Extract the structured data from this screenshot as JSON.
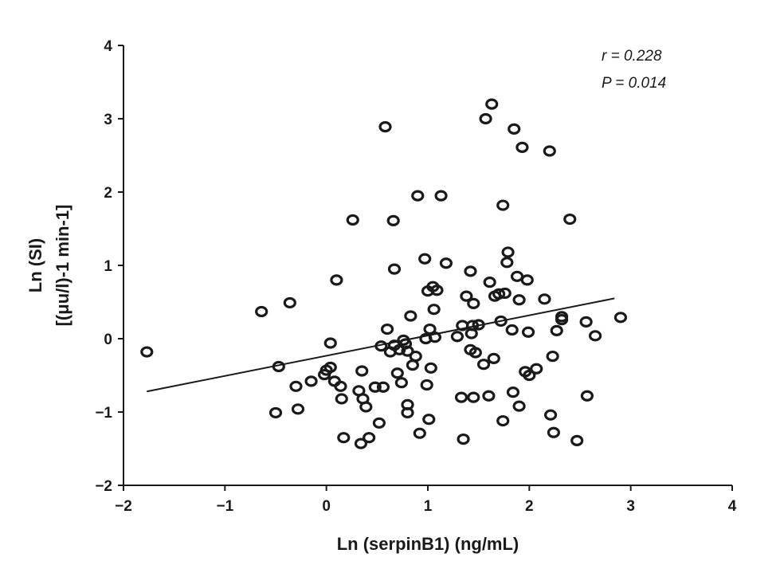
{
  "chart_data": {
    "type": "scatter",
    "xlabel": "Ln (serpinB1) (ng/mL)",
    "ylabel_line1": "Ln (SI)",
    "ylabel_line2": "[(μu/l)-1 min-1]",
    "xlim": [
      -2,
      4
    ],
    "ylim": [
      -2,
      4
    ],
    "x_ticks": [
      -2,
      -1,
      0,
      1,
      2,
      3,
      4
    ],
    "x_tick_labels": [
      "−2",
      "−1",
      "0",
      "1",
      "2",
      "3",
      "4"
    ],
    "y_ticks": [
      -2,
      -1,
      0,
      1,
      2,
      3,
      4
    ],
    "y_tick_labels": [
      "−2",
      "−1",
      "0",
      "1",
      "2",
      "3",
      "4"
    ],
    "grid": false,
    "annotations": {
      "r": "r = 0.228",
      "p": "P = 0.014"
    },
    "trendline": {
      "x": [
        -1.77,
        2.84
      ],
      "y": [
        -0.72,
        0.55
      ]
    },
    "points": [
      [
        -1.77,
        -0.18
      ],
      [
        -0.64,
        0.37
      ],
      [
        -0.36,
        0.49
      ],
      [
        -0.47,
        -0.38
      ],
      [
        -0.3,
        -0.65
      ],
      [
        -0.28,
        -0.96
      ],
      [
        -0.5,
        -1.01
      ],
      [
        -0.15,
        -0.58
      ],
      [
        0.1,
        0.8
      ],
      [
        0.04,
        -0.06
      ],
      [
        0.04,
        -0.39
      ],
      [
        0.0,
        -0.43
      ],
      [
        -0.02,
        -0.49
      ],
      [
        0.08,
        -0.58
      ],
      [
        0.14,
        -0.65
      ],
      [
        0.15,
        -0.82
      ],
      [
        0.17,
        -1.35
      ],
      [
        0.26,
        1.62
      ],
      [
        0.32,
        -0.71
      ],
      [
        0.34,
        -1.43
      ],
      [
        0.35,
        -0.44
      ],
      [
        0.36,
        -0.82
      ],
      [
        0.39,
        -0.93
      ],
      [
        0.42,
        -1.35
      ],
      [
        0.48,
        -0.66
      ],
      [
        0.52,
        -1.15
      ],
      [
        0.54,
        -0.1
      ],
      [
        0.56,
        -0.66
      ],
      [
        0.58,
        2.89
      ],
      [
        0.6,
        0.13
      ],
      [
        0.63,
        -0.18
      ],
      [
        0.66,
        1.61
      ],
      [
        0.67,
        0.95
      ],
      [
        0.67,
        -0.09
      ],
      [
        0.7,
        -0.47
      ],
      [
        0.72,
        -0.15
      ],
      [
        0.74,
        -0.6
      ],
      [
        0.76,
        -0.02
      ],
      [
        0.78,
        -0.07
      ],
      [
        0.8,
        -0.17
      ],
      [
        0.8,
        -1.01
      ],
      [
        0.8,
        -0.9
      ],
      [
        0.83,
        0.31
      ],
      [
        0.85,
        -0.36
      ],
      [
        0.88,
        -0.24
      ],
      [
        0.9,
        1.95
      ],
      [
        0.92,
        -1.29
      ],
      [
        0.97,
        1.09
      ],
      [
        0.98,
        0.0
      ],
      [
        0.99,
        -0.63
      ],
      [
        1.0,
        0.65
      ],
      [
        1.01,
        -1.1
      ],
      [
        1.02,
        0.13
      ],
      [
        1.03,
        -0.4
      ],
      [
        1.05,
        0.71
      ],
      [
        1.06,
        0.4
      ],
      [
        1.07,
        0.02
      ],
      [
        1.09,
        0.66
      ],
      [
        1.13,
        1.95
      ],
      [
        1.18,
        1.03
      ],
      [
        1.29,
        0.03
      ],
      [
        1.33,
        -0.8
      ],
      [
        1.34,
        0.18
      ],
      [
        1.35,
        -1.37
      ],
      [
        1.38,
        0.58
      ],
      [
        1.42,
        0.92
      ],
      [
        1.42,
        -0.15
      ],
      [
        1.43,
        0.07
      ],
      [
        1.44,
        0.18
      ],
      [
        1.45,
        0.48
      ],
      [
        1.45,
        -0.8
      ],
      [
        1.47,
        -0.19
      ],
      [
        1.5,
        0.19
      ],
      [
        1.55,
        -0.35
      ],
      [
        1.57,
        3.0
      ],
      [
        1.6,
        -0.78
      ],
      [
        1.61,
        0.77
      ],
      [
        1.63,
        3.2
      ],
      [
        1.65,
        -0.27
      ],
      [
        1.66,
        0.58
      ],
      [
        1.7,
        0.61
      ],
      [
        1.72,
        0.24
      ],
      [
        1.74,
        1.82
      ],
      [
        1.74,
        -1.12
      ],
      [
        1.76,
        0.62
      ],
      [
        1.78,
        1.04
      ],
      [
        1.79,
        1.18
      ],
      [
        1.83,
        0.12
      ],
      [
        1.84,
        -0.73
      ],
      [
        1.85,
        2.86
      ],
      [
        1.88,
        0.85
      ],
      [
        1.9,
        0.53
      ],
      [
        1.9,
        -0.92
      ],
      [
        1.93,
        2.61
      ],
      [
        1.96,
        -0.45
      ],
      [
        1.98,
        0.8
      ],
      [
        1.99,
        0.09
      ],
      [
        2.0,
        -0.5
      ],
      [
        2.07,
        -0.41
      ],
      [
        2.15,
        0.54
      ],
      [
        2.2,
        2.56
      ],
      [
        2.21,
        -1.04
      ],
      [
        2.23,
        -0.24
      ],
      [
        2.24,
        -1.28
      ],
      [
        2.27,
        0.11
      ],
      [
        2.32,
        0.26
      ],
      [
        2.32,
        0.3
      ],
      [
        2.4,
        1.63
      ],
      [
        2.47,
        -1.39
      ],
      [
        2.56,
        0.23
      ],
      [
        2.57,
        -0.78
      ],
      [
        2.65,
        0.04
      ],
      [
        2.9,
        0.29
      ]
    ]
  }
}
